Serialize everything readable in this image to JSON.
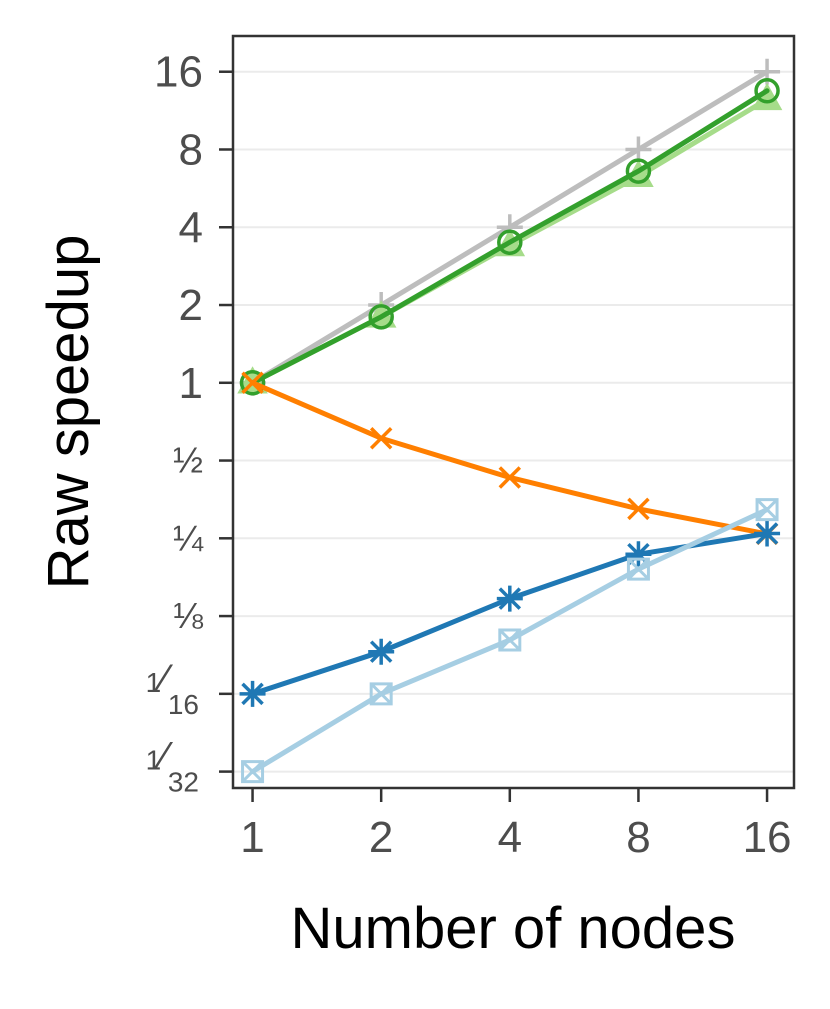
{
  "chart_data": {
    "type": "line",
    "xlabel": "Number of nodes",
    "ylabel": "Raw speedup",
    "x": [
      1,
      2,
      4,
      8,
      16
    ],
    "xscale": "log2",
    "yscale": "log2",
    "xticks": [
      {
        "value": 1,
        "label": "1"
      },
      {
        "value": 2,
        "label": "2"
      },
      {
        "value": 4,
        "label": "4"
      },
      {
        "value": 8,
        "label": "8"
      },
      {
        "value": 16,
        "label": "16"
      }
    ],
    "yticks": [
      {
        "value": 0.03125,
        "label": "1/32",
        "num": "1",
        "den": "32"
      },
      {
        "value": 0.0625,
        "label": "1/16",
        "num": "1",
        "den": "16"
      },
      {
        "value": 0.125,
        "label": "⅛"
      },
      {
        "value": 0.25,
        "label": "¼"
      },
      {
        "value": 0.5,
        "label": "½"
      },
      {
        "value": 1,
        "label": "1"
      },
      {
        "value": 2,
        "label": "2"
      },
      {
        "value": 4,
        "label": "4"
      },
      {
        "value": 8,
        "label": "8"
      },
      {
        "value": 16,
        "label": "16"
      }
    ],
    "xlim": [
      0.9,
      18.5
    ],
    "ylim": [
      0.027,
      22
    ],
    "grid": "horizontal",
    "legend": "none",
    "series": [
      {
        "marker": "plus",
        "color": "#bdbdbd",
        "values": [
          1,
          2,
          4,
          8,
          16
        ]
      },
      {
        "marker": "triangle",
        "color": "#a6dc8a",
        "values": [
          1,
          1.8,
          3.4,
          6.3,
          12.5
        ]
      },
      {
        "marker": "circle",
        "color": "#33a02c",
        "values": [
          1,
          1.8,
          3.5,
          6.6,
          13.5
        ]
      },
      {
        "marker": "cross",
        "color": "#ff7f00",
        "values": [
          1,
          0.61,
          0.43,
          0.325,
          0.26
        ]
      },
      {
        "marker": "asterisk",
        "color": "#1f78b4",
        "values": [
          0.0625,
          0.091,
          0.146,
          0.217,
          0.261
        ]
      },
      {
        "marker": "square-cross",
        "color": "#a6cee3",
        "values": [
          0.03125,
          0.0625,
          0.101,
          0.19,
          0.323
        ]
      }
    ]
  }
}
